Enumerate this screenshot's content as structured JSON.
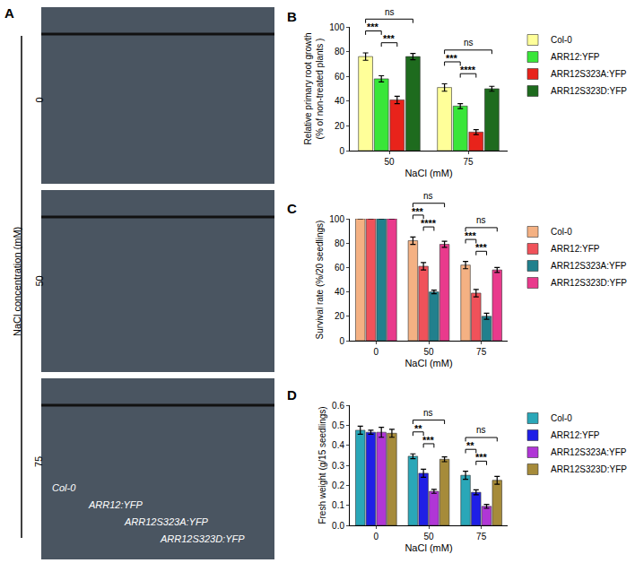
{
  "photo_panel": {
    "panel": "A",
    "axis_label": "NaCl concentration (mM)",
    "conditions": [
      "0",
      "50",
      "75"
    ],
    "genotypes": [
      "Col-0",
      "ARR12:YFP",
      "ARR12S323A:YFP",
      "ARR12S323D:YFP"
    ]
  },
  "chart_data": [
    {
      "panel": "B",
      "type": "bar",
      "x_label": "NaCl (mM)",
      "y_label": "Relative primary root growth\n(% of non-treated plants )",
      "categories": [
        "50",
        "75"
      ],
      "series": [
        {
          "name": "Col-0",
          "color": "#ffff99",
          "values": [
            76,
            51
          ],
          "errors": [
            3,
            3
          ]
        },
        {
          "name": "ARR12:YFP",
          "color": "#39e639",
          "values": [
            58,
            36
          ],
          "errors": [
            2.5,
            2
          ]
        },
        {
          "name": "ARR12S323A:YFP",
          "color": "#e8231b",
          "values": [
            41,
            15
          ],
          "errors": [
            3,
            2
          ]
        },
        {
          "name": "ARR12S323D:YFP",
          "color": "#1e6b1e",
          "values": [
            76,
            50
          ],
          "errors": [
            2.5,
            2
          ]
        }
      ],
      "ylim": [
        0,
        100
      ],
      "yticks": [
        0,
        20,
        40,
        60,
        80,
        100
      ],
      "grid": false,
      "legend": "right",
      "significance": [
        {
          "category": "50",
          "from": "ARR12:YFP",
          "to": "ARR12S323A:YFP",
          "label": "***"
        },
        {
          "category": "50",
          "from": "Col-0",
          "to": "ARR12:YFP",
          "label": "***"
        },
        {
          "category": "50",
          "from": "Col-0",
          "to": "ARR12S323D:YFP",
          "label": "ns"
        },
        {
          "category": "75",
          "from": "ARR12:YFP",
          "to": "ARR12S323A:YFP",
          "label": "****"
        },
        {
          "category": "75",
          "from": "Col-0",
          "to": "ARR12:YFP",
          "label": "***"
        },
        {
          "category": "75",
          "from": "Col-0",
          "to": "ARR12S323D:YFP",
          "label": "ns"
        }
      ]
    },
    {
      "panel": "C",
      "type": "bar",
      "x_label": "NaCl (mM)",
      "y_label": "Survival rate (%/20 seedlings)",
      "categories": [
        "0",
        "50",
        "75"
      ],
      "series": [
        {
          "name": "Col-0",
          "color": "#f4b183",
          "values": [
            100,
            82,
            62
          ],
          "errors": [
            0,
            3,
            3
          ]
        },
        {
          "name": "ARR12:YFP",
          "color": "#f0525a",
          "values": [
            100,
            61,
            39
          ],
          "errors": [
            0,
            3,
            3
          ]
        },
        {
          "name": "ARR12S323A:YFP",
          "color": "#21808d",
          "values": [
            100,
            40,
            20
          ],
          "errors": [
            0,
            1.5,
            2.5
          ]
        },
        {
          "name": "ARR12S323D:YFP",
          "color": "#e93a8c",
          "values": [
            100,
            79,
            58
          ],
          "errors": [
            0,
            2.5,
            2
          ]
        }
      ],
      "ylim": [
        0,
        100
      ],
      "yticks": [
        0,
        20,
        40,
        60,
        80,
        100
      ],
      "grid": false,
      "legend": "right",
      "significance": [
        {
          "category": "50",
          "from": "ARR12:YFP",
          "to": "ARR12S323A:YFP",
          "label": "****"
        },
        {
          "category": "50",
          "from": "Col-0",
          "to": "ARR12:YFP",
          "label": "***"
        },
        {
          "category": "50",
          "from": "Col-0",
          "to": "ARR12S323D:YFP",
          "label": "ns"
        },
        {
          "category": "75",
          "from": "ARR12:YFP",
          "to": "ARR12S323A:YFP",
          "label": "***"
        },
        {
          "category": "75",
          "from": "Col-0",
          "to": "ARR12:YFP",
          "label": "***"
        },
        {
          "category": "75",
          "from": "Col-0",
          "to": "ARR12S323D:YFP",
          "label": "ns"
        }
      ]
    },
    {
      "panel": "D",
      "type": "bar",
      "x_label": "NaCl (mM)",
      "y_label": "Fresh weight (g/15 seedlings)",
      "categories": [
        "0",
        "50",
        "75"
      ],
      "series": [
        {
          "name": "Col-0",
          "color": "#2aa7b8",
          "values": [
            0.475,
            0.345,
            0.25
          ],
          "errors": [
            0.02,
            0.012,
            0.02
          ]
        },
        {
          "name": "ARR12:YFP",
          "color": "#1f1fe6",
          "values": [
            0.465,
            0.26,
            0.165
          ],
          "errors": [
            0.01,
            0.02,
            0.012
          ]
        },
        {
          "name": "ARR12S323A:YFP",
          "color": "#b036d6",
          "values": [
            0.465,
            0.17,
            0.095
          ],
          "errors": [
            0.025,
            0.01,
            0.01
          ]
        },
        {
          "name": "ARR12S323D:YFP",
          "color": "#a68b3a",
          "values": [
            0.46,
            0.33,
            0.225
          ],
          "errors": [
            0.02,
            0.012,
            0.02
          ]
        }
      ],
      "ylim": [
        0,
        0.6
      ],
      "yticks": [
        {
          "value": 0,
          "label": "0.0"
        },
        0.1,
        0.2,
        0.3,
        0.4,
        0.5,
        0.6
      ],
      "grid": false,
      "legend": "right",
      "significance": [
        {
          "category": "50",
          "from": "ARR12:YFP",
          "to": "ARR12S323A:YFP",
          "label": "***"
        },
        {
          "category": "50",
          "from": "Col-0",
          "to": "ARR12:YFP",
          "label": "**"
        },
        {
          "category": "50",
          "from": "Col-0",
          "to": "ARR12S323D:YFP",
          "label": "ns"
        },
        {
          "category": "75",
          "from": "ARR12:YFP",
          "to": "ARR12S323A:YFP",
          "label": "***"
        },
        {
          "category": "75",
          "from": "Col-0",
          "to": "ARR12:YFP",
          "label": "**"
        },
        {
          "category": "75",
          "from": "Col-0",
          "to": "ARR12S323D:YFP",
          "label": "ns"
        }
      ]
    }
  ]
}
